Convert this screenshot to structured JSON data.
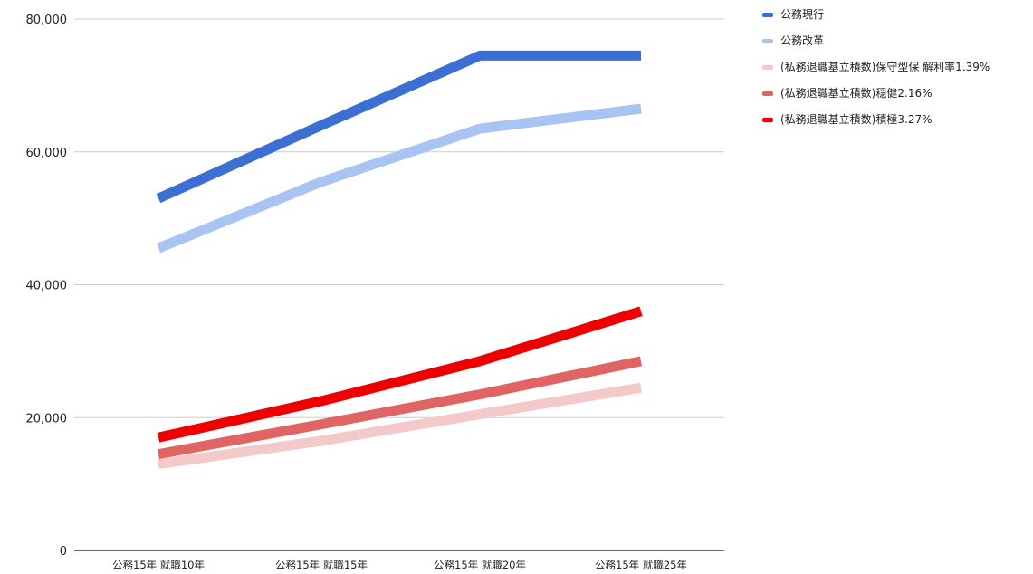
{
  "chart_data": {
    "type": "line",
    "categories": [
      "公務15年 就職10年",
      "公務15年 就職15年",
      "公務15年 就職20年",
      "公務15年 就職25年"
    ],
    "ylim": [
      0,
      80000
    ],
    "y_ticks": [
      "0",
      "20,000",
      "40,000",
      "60,000",
      "80,000"
    ],
    "y_tick_values": [
      0,
      20000,
      40000,
      60000,
      80000
    ],
    "grid": true,
    "legend_position": "right",
    "series": [
      {
        "name": "公務現行",
        "color": "#3b6fd4",
        "values": [
          53000,
          64000,
          74500,
          74500
        ]
      },
      {
        "name": "公務改革",
        "color": "#a9c4f2",
        "values": [
          45500,
          55500,
          63500,
          66500
        ]
      },
      {
        "name": "(私務退職基立積数)保守型保 解利率1.39%",
        "color": "#f4c9c9",
        "values": [
          13000,
          16500,
          20500,
          24500
        ]
      },
      {
        "name": "(私務退職基立積数)穏健2.16%",
        "color": "#e06464",
        "values": [
          14500,
          19000,
          23500,
          28500
        ]
      },
      {
        "name": "(私務退職基立積数)積極3.27%",
        "color": "#ee0000",
        "values": [
          17000,
          22500,
          28500,
          36000
        ]
      }
    ]
  }
}
